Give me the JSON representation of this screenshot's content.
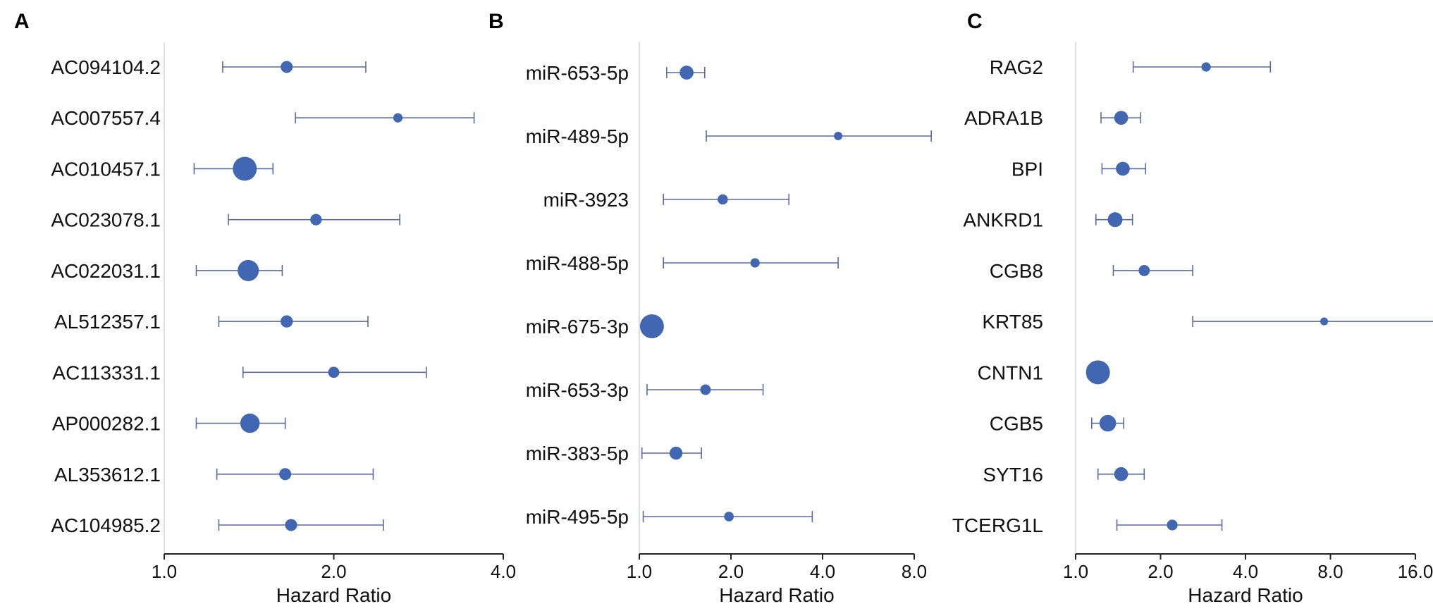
{
  "figure": {
    "accent": "#4267b2",
    "ci_color": "#5a6aa0"
  },
  "chart_data": [
    {
      "type": "forest",
      "panel": "A",
      "xlabel": "Hazard Ratio",
      "xscale": "log",
      "xlim": [
        1.0,
        4.0
      ],
      "ticks": [
        1.0,
        2.0,
        4.0
      ],
      "tick_labels": [
        "1.0",
        "2.0",
        "4.0"
      ],
      "rows": [
        {
          "label": "AC094104.2",
          "hr": 1.65,
          "lower": 1.27,
          "upper": 2.28,
          "weight": 0.35
        },
        {
          "label": "AC007557.4",
          "hr": 2.6,
          "lower": 1.71,
          "upper": 3.55,
          "weight": 0.2
        },
        {
          "label": "AC010457.1",
          "hr": 1.39,
          "lower": 1.13,
          "upper": 1.56,
          "weight": 1.0
        },
        {
          "label": "AC023078.1",
          "hr": 1.86,
          "lower": 1.3,
          "upper": 2.62,
          "weight": 0.32
        },
        {
          "label": "AC022031.1",
          "hr": 1.41,
          "lower": 1.14,
          "upper": 1.62,
          "weight": 0.85
        },
        {
          "label": "AL512357.1",
          "hr": 1.65,
          "lower": 1.25,
          "upper": 2.3,
          "weight": 0.36
        },
        {
          "label": "AC113331.1",
          "hr": 2.0,
          "lower": 1.38,
          "upper": 2.92,
          "weight": 0.3
        },
        {
          "label": "AP000282.1",
          "hr": 1.42,
          "lower": 1.14,
          "upper": 1.64,
          "weight": 0.75
        },
        {
          "label": "AL353612.1",
          "hr": 1.64,
          "lower": 1.24,
          "upper": 2.35,
          "weight": 0.35
        },
        {
          "label": "AC104985.2",
          "hr": 1.68,
          "lower": 1.25,
          "upper": 2.45,
          "weight": 0.35
        }
      ]
    },
    {
      "type": "forest",
      "panel": "B",
      "xlabel": "Hazard Ratio",
      "xscale": "log",
      "xlim": [
        1.0,
        8.0
      ],
      "ticks": [
        1.0,
        2.0,
        4.0,
        8.0
      ],
      "tick_labels": [
        "1.0",
        "2.0",
        "4.0",
        "8.0"
      ],
      "rows": [
        {
          "label": "miR-653-5p",
          "hr": 1.43,
          "lower": 1.23,
          "upper": 1.64,
          "weight": 0.45
        },
        {
          "label": "miR-489-5p",
          "hr": 4.5,
          "lower": 1.66,
          "upper": 9.1,
          "weight": 0.15
        },
        {
          "label": "miR-3923",
          "hr": 1.88,
          "lower": 1.2,
          "upper": 3.1,
          "weight": 0.25
        },
        {
          "label": "miR-488-5p",
          "hr": 2.4,
          "lower": 1.2,
          "upper": 4.5,
          "weight": 0.2
        },
        {
          "label": "miR-675-3p",
          "hr": 1.1,
          "lower": 1.05,
          "upper": 1.15,
          "weight": 1.0
        },
        {
          "label": "miR-653-3p",
          "hr": 1.65,
          "lower": 1.06,
          "upper": 2.55,
          "weight": 0.27
        },
        {
          "label": "miR-383-5p",
          "hr": 1.32,
          "lower": 1.02,
          "upper": 1.6,
          "weight": 0.4
        },
        {
          "label": "miR-495-5p",
          "hr": 1.97,
          "lower": 1.03,
          "upper": 3.7,
          "weight": 0.22
        }
      ]
    },
    {
      "type": "forest",
      "panel": "C",
      "xlabel": "Hazard Ratio",
      "xscale": "log",
      "xlim": [
        1.0,
        16.0
      ],
      "ticks": [
        1.0,
        2.0,
        4.0,
        8.0,
        16.0
      ],
      "tick_labels": [
        "1.0",
        "2.0",
        "4.0",
        "8.0",
        "16.0"
      ],
      "rows": [
        {
          "label": "RAG2",
          "hr": 2.9,
          "lower": 1.6,
          "upper": 4.9,
          "weight": 0.2
        },
        {
          "label": "ADRA1B",
          "hr": 1.45,
          "lower": 1.23,
          "upper": 1.7,
          "weight": 0.45
        },
        {
          "label": "BPI",
          "hr": 1.47,
          "lower": 1.24,
          "upper": 1.77,
          "weight": 0.45
        },
        {
          "label": "ANKRD1",
          "hr": 1.38,
          "lower": 1.18,
          "upper": 1.59,
          "weight": 0.5
        },
        {
          "label": "CGB8",
          "hr": 1.75,
          "lower": 1.36,
          "upper": 2.6,
          "weight": 0.3
        },
        {
          "label": "KRT85",
          "hr": 7.6,
          "lower": 2.6,
          "upper": 19.0,
          "weight": 0.12
        },
        {
          "label": "CNTN1",
          "hr": 1.2,
          "lower": 1.1,
          "upper": 1.3,
          "weight": 1.0
        },
        {
          "label": "CGB5",
          "hr": 1.3,
          "lower": 1.14,
          "upper": 1.48,
          "weight": 0.6
        },
        {
          "label": "SYT16",
          "hr": 1.45,
          "lower": 1.2,
          "upper": 1.75,
          "weight": 0.45
        },
        {
          "label": "TCERG1L",
          "hr": 2.2,
          "lower": 1.4,
          "upper": 3.3,
          "weight": 0.28
        }
      ]
    }
  ]
}
